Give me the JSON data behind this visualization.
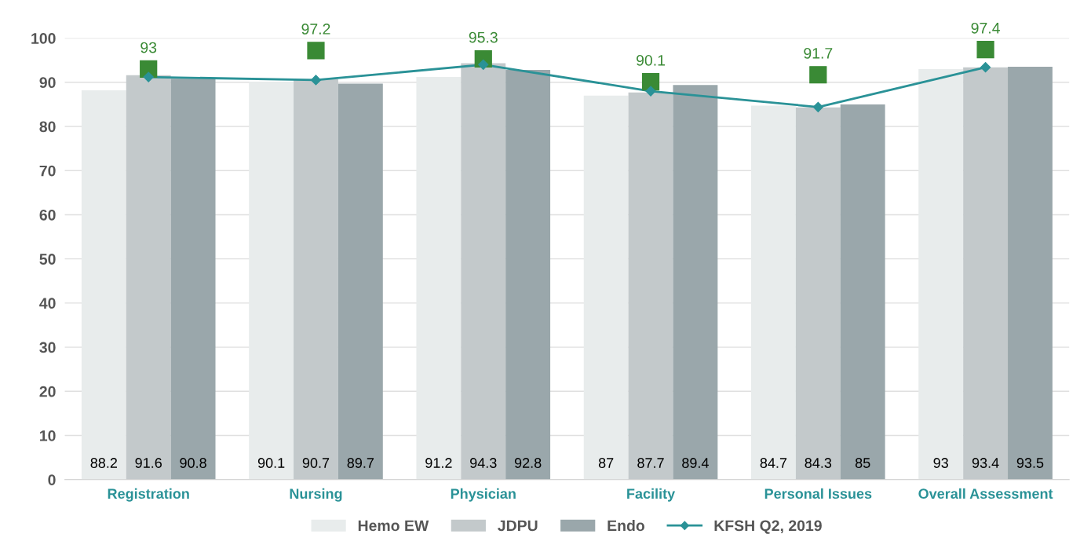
{
  "chart_data": {
    "type": "bar",
    "categories": [
      "Registration",
      "Nursing",
      "Physician",
      "Facility",
      "Personal Issues",
      "Overall Assessment"
    ],
    "series": [
      {
        "name": "Hemo EW",
        "color": "#e8ecec",
        "values": [
          88.2,
          90.1,
          91.2,
          87,
          84.7,
          93
        ],
        "value_labels": [
          "88.2",
          "90.1",
          "91.2",
          "87",
          "84.7",
          "93"
        ]
      },
      {
        "name": "JDPU",
        "color": "#c3c9cb",
        "values": [
          91.6,
          90.7,
          94.3,
          87.7,
          84.3,
          93.4
        ],
        "value_labels": [
          "91.6",
          "90.7",
          "94.3",
          "87.7",
          "84.3",
          "93.4"
        ]
      },
      {
        "name": "Endo",
        "color": "#9aa7ab",
        "values": [
          90.8,
          89.7,
          92.8,
          89.4,
          85,
          93.5
        ],
        "value_labels": [
          "90.8",
          "89.7",
          "92.8",
          "89.4",
          "85",
          "93.5"
        ]
      },
      {
        "name": "KFSH Q2, 2019",
        "type": "line",
        "color": "#2a9297",
        "marker": "diamond",
        "values": [
          91.2,
          90.5,
          94,
          88,
          84.4,
          93.4
        ]
      },
      {
        "type": "scatter",
        "color": "#3a8a35",
        "marker": "square",
        "values": [
          93,
          97.2,
          95.3,
          90.1,
          91.7,
          97.4
        ],
        "value_labels": [
          "93",
          "97.2",
          "95.3",
          "90.1",
          "91.7",
          "97.4"
        ]
      }
    ],
    "ylim": [
      0,
      100
    ],
    "yticks": [
      0,
      10,
      20,
      30,
      40,
      50,
      60,
      70,
      80,
      90,
      100
    ],
    "grid": "y",
    "legend": "bottom"
  }
}
